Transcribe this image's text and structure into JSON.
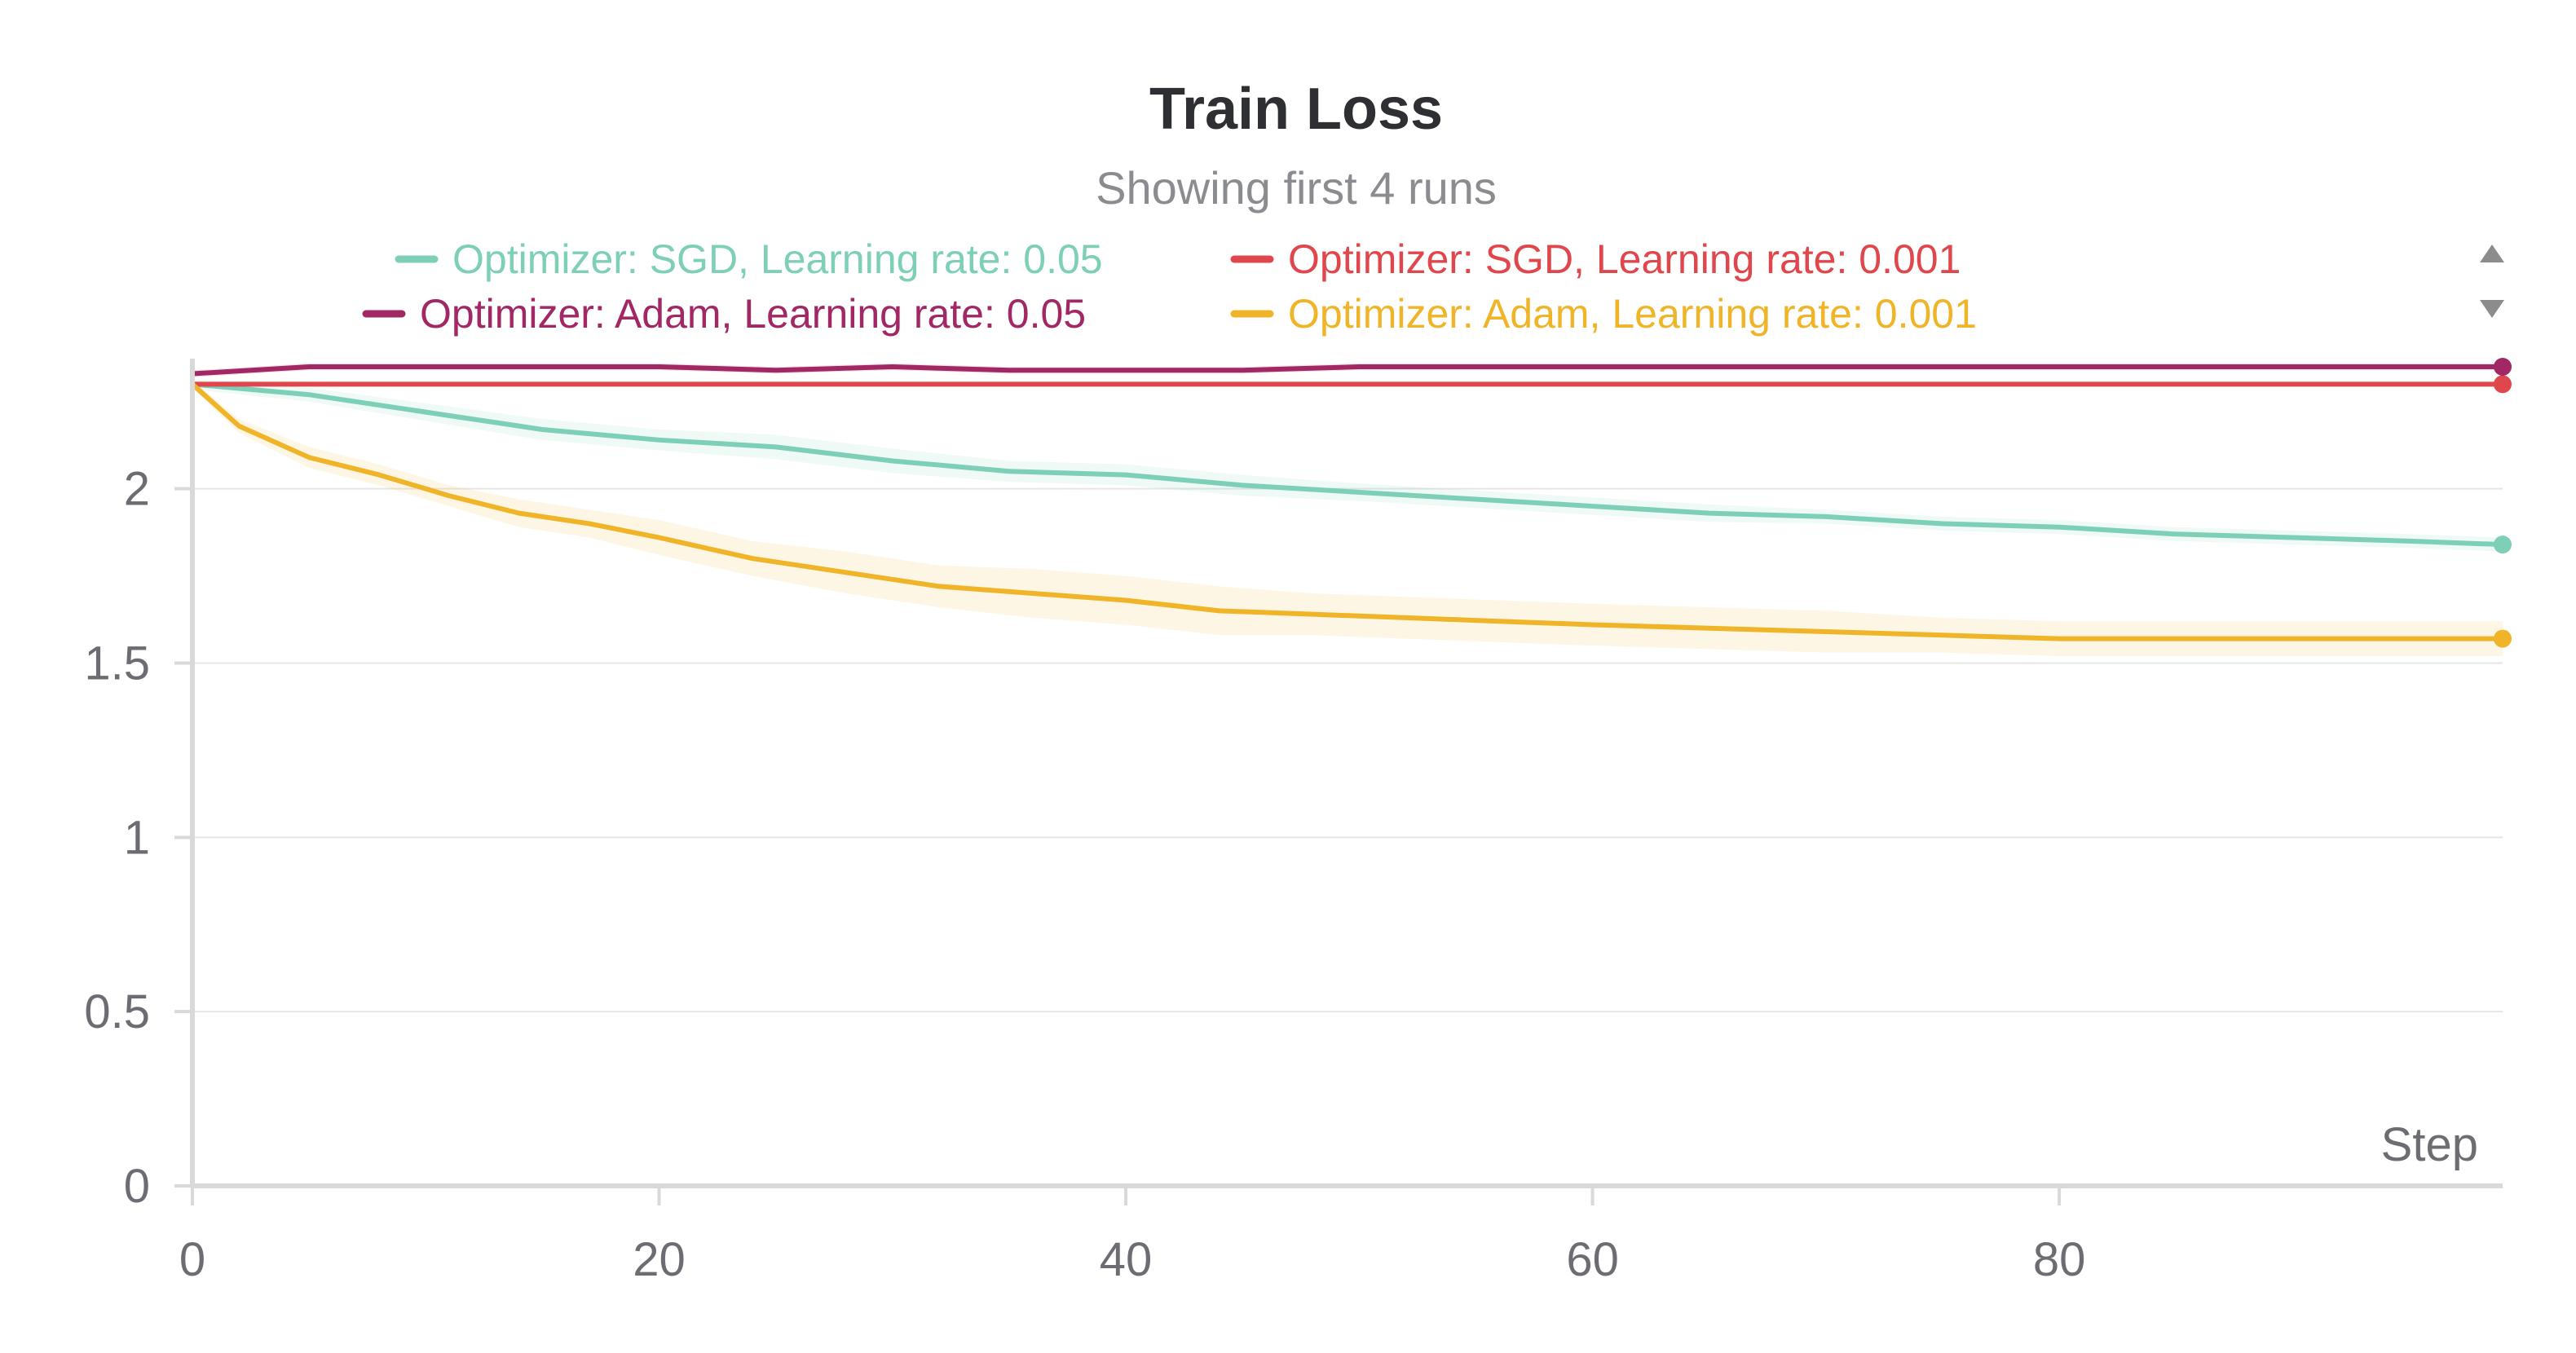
{
  "chart_data": {
    "type": "line",
    "title": "Train Loss",
    "subtitle": "Showing first 4 runs",
    "xlabel": "Step",
    "ylabel": "",
    "xlim": [
      0,
      99
    ],
    "ylim": [
      0,
      2.35
    ],
    "x_ticks": [
      "0",
      "20",
      "40",
      "60",
      "80"
    ],
    "y_ticks": [
      "0",
      "0.5",
      "1",
      "1.5",
      "2"
    ],
    "grid": true,
    "legend_position": "top",
    "legend_scroll_icons": [
      "scroll-up-icon",
      "scroll-down-icon"
    ],
    "colors": {
      "axis": "#d9d9d9",
      "grid": "#e6e6e6",
      "text": "#6b6d72",
      "title": "#2d2f33"
    },
    "series": [
      {
        "name": "Optimizer: SGD, Learning rate: 0.05",
        "color": "#7ecfb8",
        "x": [
          0,
          5,
          10,
          15,
          20,
          25,
          30,
          35,
          40,
          45,
          50,
          55,
          60,
          65,
          70,
          75,
          80,
          85,
          90,
          95,
          99
        ],
        "y": [
          2.3,
          2.27,
          2.22,
          2.17,
          2.14,
          2.12,
          2.08,
          2.05,
          2.04,
          2.01,
          1.99,
          1.97,
          1.95,
          1.93,
          1.92,
          1.9,
          1.89,
          1.87,
          1.86,
          1.85,
          1.84
        ],
        "band": [
          0.015,
          0.02,
          0.025,
          0.03,
          0.03,
          0.035,
          0.035,
          0.03,
          0.03,
          0.03,
          0.025,
          0.025,
          0.025,
          0.025,
          0.02,
          0.02,
          0.02,
          0.02,
          0.02,
          0.02,
          0.02
        ]
      },
      {
        "name": "Optimizer: SGD, Learning rate: 0.001",
        "color": "#e0474c",
        "x": [
          0,
          5,
          10,
          15,
          20,
          25,
          30,
          35,
          40,
          45,
          50,
          55,
          60,
          65,
          70,
          75,
          80,
          85,
          90,
          95,
          99
        ],
        "y": [
          2.3,
          2.3,
          2.3,
          2.3,
          2.3,
          2.3,
          2.3,
          2.3,
          2.3,
          2.3,
          2.3,
          2.3,
          2.3,
          2.3,
          2.3,
          2.3,
          2.3,
          2.3,
          2.3,
          2.3,
          2.3
        ],
        "band": [
          0.003,
          0.003,
          0.003,
          0.003,
          0.003,
          0.003,
          0.003,
          0.003,
          0.003,
          0.003,
          0.003,
          0.003,
          0.003,
          0.003,
          0.003,
          0.003,
          0.003,
          0.003,
          0.003,
          0.003,
          0.003
        ]
      },
      {
        "name": "Optimizer: Adam, Learning rate: 0.05",
        "color": "#a12864",
        "x": [
          0,
          5,
          10,
          15,
          20,
          25,
          30,
          35,
          40,
          45,
          50,
          55,
          60,
          65,
          70,
          75,
          80,
          85,
          90,
          95,
          99
        ],
        "y": [
          2.33,
          2.35,
          2.35,
          2.35,
          2.35,
          2.34,
          2.35,
          2.34,
          2.34,
          2.34,
          2.35,
          2.35,
          2.35,
          2.35,
          2.35,
          2.35,
          2.35,
          2.35,
          2.35,
          2.35,
          2.35
        ],
        "band": [
          0.01,
          0.01,
          0.01,
          0.01,
          0.01,
          0.01,
          0.01,
          0.01,
          0.01,
          0.01,
          0.01,
          0.01,
          0.01,
          0.01,
          0.01,
          0.01,
          0.01,
          0.01,
          0.01,
          0.01,
          0.01
        ]
      },
      {
        "name": "Optimizer: Adam, Learning rate: 0.001",
        "color": "#f0b429",
        "x": [
          0,
          2,
          5,
          8,
          11,
          14,
          17,
          20,
          24,
          28,
          32,
          36,
          40,
          44,
          48,
          52,
          56,
          60,
          65,
          70,
          75,
          80,
          85,
          90,
          95,
          99
        ],
        "y": [
          2.3,
          2.18,
          2.09,
          2.04,
          1.98,
          1.93,
          1.9,
          1.86,
          1.8,
          1.76,
          1.72,
          1.7,
          1.68,
          1.65,
          1.64,
          1.63,
          1.62,
          1.61,
          1.6,
          1.59,
          1.58,
          1.57,
          1.57,
          1.57,
          1.57,
          1.57
        ],
        "band": [
          0.01,
          0.02,
          0.03,
          0.03,
          0.03,
          0.04,
          0.04,
          0.05,
          0.05,
          0.06,
          0.06,
          0.07,
          0.07,
          0.07,
          0.06,
          0.06,
          0.06,
          0.06,
          0.06,
          0.06,
          0.05,
          0.05,
          0.05,
          0.05,
          0.05,
          0.05
        ]
      }
    ]
  }
}
